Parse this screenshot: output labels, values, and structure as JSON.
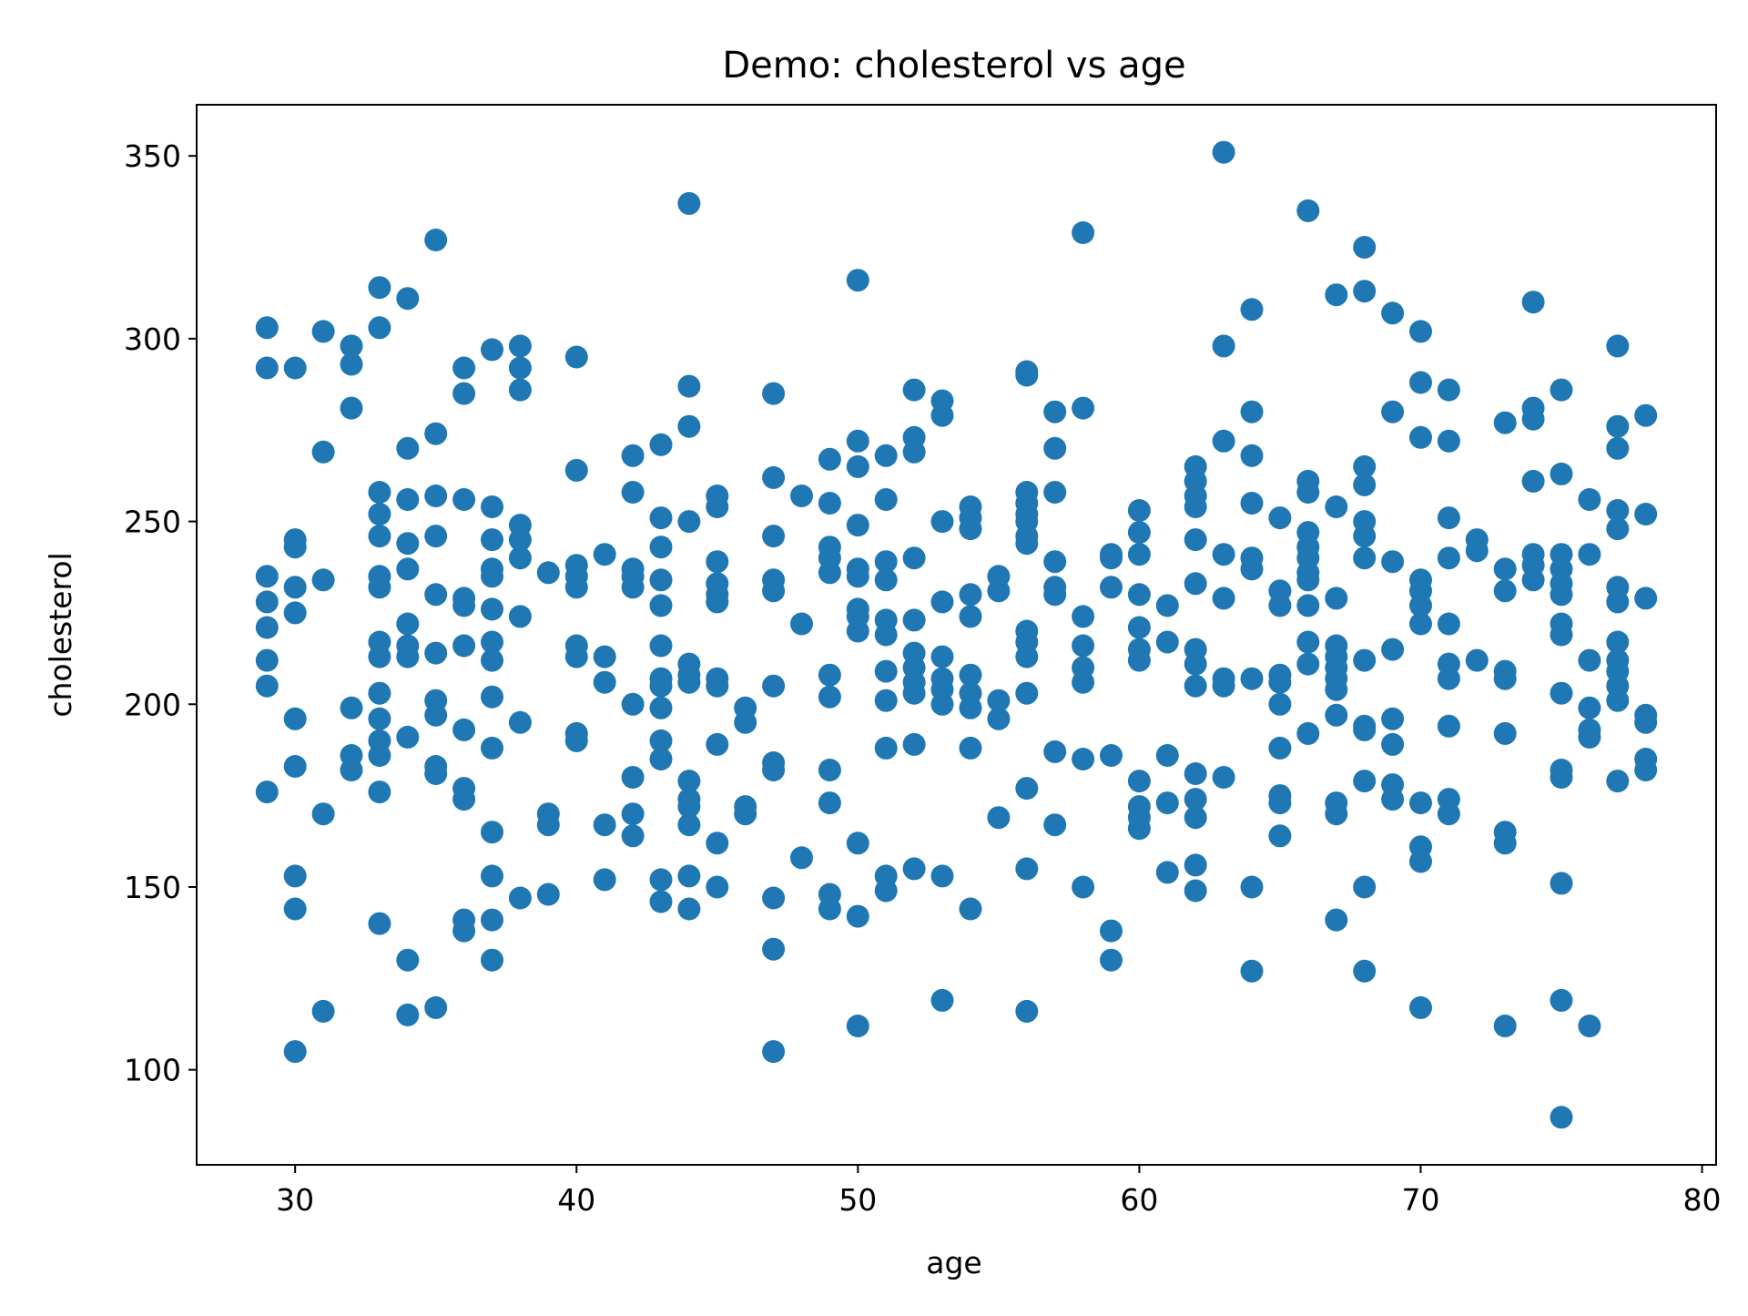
{
  "chart_data": {
    "type": "scatter",
    "title": "Demo: cholesterol vs age",
    "xlabel": "age",
    "ylabel": "cholesterol",
    "xlim": [
      26.5,
      80.5
    ],
    "ylim": [
      74,
      364
    ],
    "xticks": [
      30,
      40,
      50,
      60,
      70,
      80
    ],
    "yticks": [
      100,
      150,
      200,
      250,
      300,
      350
    ],
    "grid": false,
    "legend": "none",
    "marker_color": "#1f77b4",
    "points": [
      [
        29,
        303
      ],
      [
        29,
        292
      ],
      [
        29,
        235
      ],
      [
        29,
        228
      ],
      [
        29,
        221
      ],
      [
        29,
        212
      ],
      [
        29,
        205
      ],
      [
        29,
        176
      ],
      [
        30,
        292
      ],
      [
        30,
        245
      ],
      [
        30,
        243
      ],
      [
        30,
        232
      ],
      [
        30,
        225
      ],
      [
        30,
        196
      ],
      [
        30,
        183
      ],
      [
        30,
        153
      ],
      [
        30,
        144
      ],
      [
        30,
        105
      ],
      [
        31,
        302
      ],
      [
        31,
        269
      ],
      [
        31,
        234
      ],
      [
        31,
        170
      ],
      [
        31,
        116
      ],
      [
        32,
        298
      ],
      [
        32,
        293
      ],
      [
        32,
        281
      ],
      [
        32,
        199
      ],
      [
        32,
        186
      ],
      [
        32,
        182
      ],
      [
        33,
        314
      ],
      [
        33,
        303
      ],
      [
        33,
        258
      ],
      [
        33,
        252
      ],
      [
        33,
        246
      ],
      [
        33,
        235
      ],
      [
        33,
        232
      ],
      [
        33,
        217
      ],
      [
        33,
        213
      ],
      [
        33,
        203
      ],
      [
        33,
        196
      ],
      [
        33,
        190
      ],
      [
        33,
        186
      ],
      [
        33,
        176
      ],
      [
        33,
        140
      ],
      [
        34,
        311
      ],
      [
        34,
        270
      ],
      [
        34,
        256
      ],
      [
        34,
        244
      ],
      [
        34,
        237
      ],
      [
        34,
        222
      ],
      [
        34,
        216
      ],
      [
        34,
        213
      ],
      [
        34,
        191
      ],
      [
        34,
        130
      ],
      [
        34,
        115
      ],
      [
        35,
        327
      ],
      [
        35,
        274
      ],
      [
        35,
        257
      ],
      [
        35,
        246
      ],
      [
        35,
        230
      ],
      [
        35,
        214
      ],
      [
        35,
        201
      ],
      [
        35,
        197
      ],
      [
        35,
        183
      ],
      [
        35,
        181
      ],
      [
        35,
        117
      ],
      [
        36,
        292
      ],
      [
        36,
        285
      ],
      [
        36,
        256
      ],
      [
        36,
        229
      ],
      [
        36,
        227
      ],
      [
        36,
        216
      ],
      [
        36,
        193
      ],
      [
        36,
        177
      ],
      [
        36,
        174
      ],
      [
        36,
        141
      ],
      [
        36,
        138
      ],
      [
        37,
        297
      ],
      [
        37,
        254
      ],
      [
        37,
        245
      ],
      [
        37,
        237
      ],
      [
        37,
        235
      ],
      [
        37,
        226
      ],
      [
        37,
        217
      ],
      [
        37,
        212
      ],
      [
        37,
        202
      ],
      [
        37,
        188
      ],
      [
        37,
        165
      ],
      [
        37,
        153
      ],
      [
        37,
        141
      ],
      [
        37,
        130
      ],
      [
        38,
        298
      ],
      [
        38,
        292
      ],
      [
        38,
        286
      ],
      [
        38,
        249
      ],
      [
        38,
        245
      ],
      [
        38,
        240
      ],
      [
        38,
        224
      ],
      [
        38,
        195
      ],
      [
        38,
        147
      ],
      [
        39,
        236
      ],
      [
        39,
        170
      ],
      [
        39,
        167
      ],
      [
        39,
        148
      ],
      [
        40,
        295
      ],
      [
        40,
        264
      ],
      [
        40,
        238
      ],
      [
        40,
        235
      ],
      [
        40,
        232
      ],
      [
        40,
        216
      ],
      [
        40,
        213
      ],
      [
        40,
        192
      ],
      [
        40,
        190
      ],
      [
        41,
        241
      ],
      [
        41,
        213
      ],
      [
        41,
        206
      ],
      [
        41,
        167
      ],
      [
        41,
        152
      ],
      [
        42,
        268
      ],
      [
        42,
        258
      ],
      [
        42,
        237
      ],
      [
        42,
        235
      ],
      [
        42,
        232
      ],
      [
        42,
        200
      ],
      [
        42,
        180
      ],
      [
        42,
        170
      ],
      [
        42,
        164
      ],
      [
        43,
        271
      ],
      [
        43,
        251
      ],
      [
        43,
        243
      ],
      [
        43,
        234
      ],
      [
        43,
        227
      ],
      [
        43,
        216
      ],
      [
        43,
        207
      ],
      [
        43,
        205
      ],
      [
        43,
        199
      ],
      [
        43,
        190
      ],
      [
        43,
        185
      ],
      [
        43,
        152
      ],
      [
        43,
        146
      ],
      [
        44,
        337
      ],
      [
        44,
        287
      ],
      [
        44,
        276
      ],
      [
        44,
        250
      ],
      [
        44,
        211
      ],
      [
        44,
        208
      ],
      [
        44,
        206
      ],
      [
        44,
        179
      ],
      [
        44,
        174
      ],
      [
        44,
        172
      ],
      [
        44,
        167
      ],
      [
        44,
        153
      ],
      [
        44,
        144
      ],
      [
        45,
        257
      ],
      [
        45,
        254
      ],
      [
        45,
        239
      ],
      [
        45,
        233
      ],
      [
        45,
        230
      ],
      [
        45,
        228
      ],
      [
        45,
        207
      ],
      [
        45,
        205
      ],
      [
        45,
        189
      ],
      [
        45,
        162
      ],
      [
        45,
        150
      ],
      [
        46,
        199
      ],
      [
        46,
        195
      ],
      [
        46,
        172
      ],
      [
        46,
        170
      ],
      [
        47,
        285
      ],
      [
        47,
        262
      ],
      [
        47,
        246
      ],
      [
        47,
        234
      ],
      [
        47,
        231
      ],
      [
        47,
        205
      ],
      [
        47,
        184
      ],
      [
        47,
        182
      ],
      [
        47,
        147
      ],
      [
        47,
        133
      ],
      [
        47,
        105
      ],
      [
        48,
        257
      ],
      [
        48,
        222
      ],
      [
        48,
        158
      ],
      [
        49,
        267
      ],
      [
        49,
        255
      ],
      [
        49,
        243
      ],
      [
        49,
        240
      ],
      [
        49,
        236
      ],
      [
        49,
        208
      ],
      [
        49,
        202
      ],
      [
        49,
        182
      ],
      [
        49,
        173
      ],
      [
        49,
        148
      ],
      [
        49,
        144
      ],
      [
        50,
        316
      ],
      [
        50,
        272
      ],
      [
        50,
        265
      ],
      [
        50,
        249
      ],
      [
        50,
        237
      ],
      [
        50,
        235
      ],
      [
        50,
        226
      ],
      [
        50,
        224
      ],
      [
        50,
        220
      ],
      [
        50,
        162
      ],
      [
        50,
        142
      ],
      [
        50,
        112
      ],
      [
        51,
        268
      ],
      [
        51,
        256
      ],
      [
        51,
        239
      ],
      [
        51,
        234
      ],
      [
        51,
        223
      ],
      [
        51,
        219
      ],
      [
        51,
        209
      ],
      [
        51,
        201
      ],
      [
        51,
        188
      ],
      [
        51,
        153
      ],
      [
        51,
        149
      ],
      [
        52,
        286
      ],
      [
        52,
        273
      ],
      [
        52,
        269
      ],
      [
        52,
        240
      ],
      [
        52,
        223
      ],
      [
        52,
        214
      ],
      [
        52,
        210
      ],
      [
        52,
        206
      ],
      [
        52,
        203
      ],
      [
        52,
        189
      ],
      [
        52,
        155
      ],
      [
        53,
        283
      ],
      [
        53,
        279
      ],
      [
        53,
        250
      ],
      [
        53,
        228
      ],
      [
        53,
        213
      ],
      [
        53,
        207
      ],
      [
        53,
        204
      ],
      [
        53,
        200
      ],
      [
        53,
        153
      ],
      [
        53,
        119
      ],
      [
        54,
        254
      ],
      [
        54,
        251
      ],
      [
        54,
        248
      ],
      [
        54,
        230
      ],
      [
        54,
        224
      ],
      [
        54,
        208
      ],
      [
        54,
        203
      ],
      [
        54,
        199
      ],
      [
        54,
        188
      ],
      [
        54,
        144
      ],
      [
        55,
        235
      ],
      [
        55,
        231
      ],
      [
        55,
        201
      ],
      [
        55,
        196
      ],
      [
        55,
        169
      ],
      [
        56,
        291
      ],
      [
        56,
        290
      ],
      [
        56,
        258
      ],
      [
        56,
        255
      ],
      [
        56,
        252
      ],
      [
        56,
        250
      ],
      [
        56,
        246
      ],
      [
        56,
        244
      ],
      [
        56,
        220
      ],
      [
        56,
        217
      ],
      [
        56,
        213
      ],
      [
        56,
        203
      ],
      [
        56,
        177
      ],
      [
        56,
        155
      ],
      [
        56,
        116
      ],
      [
        57,
        280
      ],
      [
        57,
        270
      ],
      [
        57,
        258
      ],
      [
        57,
        239
      ],
      [
        57,
        232
      ],
      [
        57,
        230
      ],
      [
        57,
        187
      ],
      [
        57,
        167
      ],
      [
        58,
        329
      ],
      [
        58,
        281
      ],
      [
        58,
        224
      ],
      [
        58,
        216
      ],
      [
        58,
        210
      ],
      [
        58,
        206
      ],
      [
        58,
        185
      ],
      [
        58,
        150
      ],
      [
        59,
        241
      ],
      [
        59,
        240
      ],
      [
        59,
        232
      ],
      [
        59,
        186
      ],
      [
        59,
        138
      ],
      [
        59,
        130
      ],
      [
        60,
        253
      ],
      [
        60,
        247
      ],
      [
        60,
        241
      ],
      [
        60,
        230
      ],
      [
        60,
        221
      ],
      [
        60,
        215
      ],
      [
        60,
        212
      ],
      [
        60,
        179
      ],
      [
        60,
        172
      ],
      [
        60,
        169
      ],
      [
        60,
        166
      ],
      [
        61,
        227
      ],
      [
        61,
        217
      ],
      [
        61,
        186
      ],
      [
        61,
        173
      ],
      [
        61,
        154
      ],
      [
        62,
        265
      ],
      [
        62,
        261
      ],
      [
        62,
        257
      ],
      [
        62,
        254
      ],
      [
        62,
        245
      ],
      [
        62,
        233
      ],
      [
        62,
        215
      ],
      [
        62,
        211
      ],
      [
        62,
        205
      ],
      [
        62,
        181
      ],
      [
        62,
        174
      ],
      [
        62,
        169
      ],
      [
        62,
        156
      ],
      [
        62,
        149
      ],
      [
        63,
        351
      ],
      [
        63,
        298
      ],
      [
        63,
        272
      ],
      [
        63,
        241
      ],
      [
        63,
        229
      ],
      [
        63,
        207
      ],
      [
        63,
        205
      ],
      [
        63,
        180
      ],
      [
        64,
        308
      ],
      [
        64,
        280
      ],
      [
        64,
        268
      ],
      [
        64,
        255
      ],
      [
        64,
        240
      ],
      [
        64,
        237
      ],
      [
        64,
        207
      ],
      [
        64,
        150
      ],
      [
        64,
        127
      ],
      [
        65,
        251
      ],
      [
        65,
        231
      ],
      [
        65,
        227
      ],
      [
        65,
        208
      ],
      [
        65,
        206
      ],
      [
        65,
        200
      ],
      [
        65,
        188
      ],
      [
        65,
        175
      ],
      [
        65,
        173
      ],
      [
        65,
        164
      ],
      [
        66,
        335
      ],
      [
        66,
        261
      ],
      [
        66,
        258
      ],
      [
        66,
        247
      ],
      [
        66,
        243
      ],
      [
        66,
        240
      ],
      [
        66,
        236
      ],
      [
        66,
        234
      ],
      [
        66,
        227
      ],
      [
        66,
        217
      ],
      [
        66,
        211
      ],
      [
        66,
        192
      ],
      [
        67,
        312
      ],
      [
        67,
        254
      ],
      [
        67,
        229
      ],
      [
        67,
        216
      ],
      [
        67,
        213
      ],
      [
        67,
        210
      ],
      [
        67,
        207
      ],
      [
        67,
        204
      ],
      [
        67,
        197
      ],
      [
        67,
        173
      ],
      [
        67,
        170
      ],
      [
        67,
        141
      ],
      [
        68,
        325
      ],
      [
        68,
        313
      ],
      [
        68,
        265
      ],
      [
        68,
        260
      ],
      [
        68,
        250
      ],
      [
        68,
        246
      ],
      [
        68,
        240
      ],
      [
        68,
        212
      ],
      [
        68,
        194
      ],
      [
        68,
        193
      ],
      [
        68,
        179
      ],
      [
        68,
        150
      ],
      [
        68,
        127
      ],
      [
        69,
        307
      ],
      [
        69,
        280
      ],
      [
        69,
        239
      ],
      [
        69,
        215
      ],
      [
        69,
        196
      ],
      [
        69,
        189
      ],
      [
        69,
        178
      ],
      [
        69,
        174
      ],
      [
        70,
        302
      ],
      [
        70,
        288
      ],
      [
        70,
        273
      ],
      [
        70,
        234
      ],
      [
        70,
        231
      ],
      [
        70,
        227
      ],
      [
        70,
        222
      ],
      [
        70,
        173
      ],
      [
        70,
        161
      ],
      [
        70,
        157
      ],
      [
        70,
        117
      ],
      [
        71,
        286
      ],
      [
        71,
        272
      ],
      [
        71,
        251
      ],
      [
        71,
        240
      ],
      [
        71,
        222
      ],
      [
        71,
        211
      ],
      [
        71,
        207
      ],
      [
        71,
        194
      ],
      [
        71,
        174
      ],
      [
        71,
        170
      ],
      [
        72,
        245
      ],
      [
        72,
        242
      ],
      [
        72,
        212
      ],
      [
        73,
        277
      ],
      [
        73,
        237
      ],
      [
        73,
        231
      ],
      [
        73,
        209
      ],
      [
        73,
        207
      ],
      [
        73,
        192
      ],
      [
        73,
        165
      ],
      [
        73,
        162
      ],
      [
        73,
        112
      ],
      [
        74,
        310
      ],
      [
        74,
        281
      ],
      [
        74,
        278
      ],
      [
        74,
        261
      ],
      [
        74,
        241
      ],
      [
        74,
        238
      ],
      [
        74,
        234
      ],
      [
        75,
        286
      ],
      [
        75,
        263
      ],
      [
        75,
        241
      ],
      [
        75,
        237
      ],
      [
        75,
        233
      ],
      [
        75,
        230
      ],
      [
        75,
        222
      ],
      [
        75,
        219
      ],
      [
        75,
        203
      ],
      [
        75,
        182
      ],
      [
        75,
        180
      ],
      [
        75,
        151
      ],
      [
        75,
        119
      ],
      [
        75,
        87
      ],
      [
        76,
        256
      ],
      [
        76,
        241
      ],
      [
        76,
        212
      ],
      [
        76,
        199
      ],
      [
        76,
        193
      ],
      [
        76,
        191
      ],
      [
        76,
        112
      ],
      [
        77,
        298
      ],
      [
        77,
        276
      ],
      [
        77,
        270
      ],
      [
        77,
        253
      ],
      [
        77,
        248
      ],
      [
        77,
        232
      ],
      [
        77,
        228
      ],
      [
        77,
        217
      ],
      [
        77,
        212
      ],
      [
        77,
        209
      ],
      [
        77,
        205
      ],
      [
        77,
        201
      ],
      [
        77,
        179
      ],
      [
        78,
        279
      ],
      [
        78,
        252
      ],
      [
        78,
        229
      ],
      [
        78,
        197
      ],
      [
        78,
        195
      ],
      [
        78,
        185
      ],
      [
        78,
        182
      ]
    ]
  }
}
